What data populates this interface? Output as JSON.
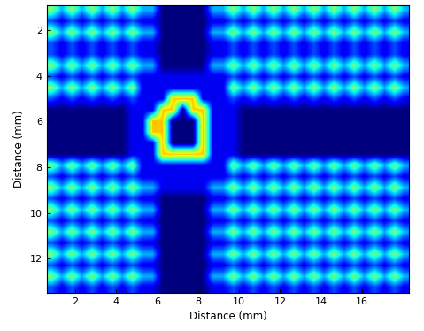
{
  "chart_data": {
    "type": "heatmap",
    "x_label": "Distance (mm)",
    "y_label": "Distance (mm)",
    "xlim": [
      0.6,
      18.3
    ],
    "ylim": [
      13.5,
      0.9
    ],
    "xticks": [
      2,
      4,
      6,
      8,
      10,
      12,
      14,
      16
    ],
    "yticks": [
      2,
      4,
      6,
      8,
      10,
      12
    ],
    "zlim": [
      0,
      10
    ],
    "cells": [
      [
        5,
        3,
        5,
        3,
        5,
        3,
        5,
        3,
        5,
        3,
        3,
        0,
        0,
        0,
        0,
        0,
        3,
        3,
        5,
        3,
        5,
        3,
        5,
        3,
        5,
        3,
        5,
        3,
        5,
        3,
        5,
        3,
        5,
        3,
        5,
        3
      ],
      [
        2,
        1,
        2,
        1,
        2,
        1,
        2,
        1,
        2,
        1,
        1,
        0,
        0,
        0,
        0,
        0,
        1,
        1,
        2,
        1,
        2,
        1,
        2,
        1,
        2,
        1,
        2,
        1,
        2,
        1,
        2,
        1,
        2,
        1,
        2,
        1
      ],
      [
        5,
        3,
        5,
        3,
        5,
        3,
        5,
        3,
        5,
        3,
        3,
        0,
        0,
        0,
        0,
        0,
        3,
        3,
        5,
        3,
        5,
        3,
        5,
        3,
        5,
        3,
        5,
        3,
        5,
        3,
        5,
        3,
        5,
        3,
        5,
        3
      ],
      [
        2,
        1,
        2,
        1,
        2,
        1,
        2,
        1,
        2,
        1,
        1,
        0,
        0,
        0,
        0,
        0,
        1,
        1,
        2,
        1,
        2,
        1,
        2,
        1,
        2,
        1,
        2,
        1,
        2,
        1,
        2,
        1,
        2,
        1,
        2,
        1
      ],
      [
        2,
        1,
        2,
        1,
        2,
        1,
        2,
        1,
        2,
        1,
        1,
        0,
        0,
        0,
        0,
        0,
        1,
        1,
        2,
        1,
        2,
        1,
        2,
        1,
        2,
        1,
        2,
        1,
        2,
        1,
        2,
        1,
        2,
        1,
        2,
        1
      ],
      [
        5,
        3,
        5,
        3,
        5,
        3,
        5,
        3,
        5,
        3,
        3,
        0,
        0,
        0,
        0,
        0,
        3,
        3,
        5,
        3,
        5,
        3,
        5,
        3,
        5,
        3,
        5,
        3,
        5,
        3,
        5,
        3,
        5,
        3,
        5,
        3
      ],
      [
        2,
        1,
        2,
        1,
        2,
        1,
        2,
        1,
        2,
        1,
        1,
        1,
        1,
        1,
        1,
        1,
        1,
        1,
        2,
        1,
        2,
        1,
        2,
        1,
        2,
        1,
        2,
        1,
        2,
        1,
        2,
        1,
        2,
        1,
        2,
        1
      ],
      [
        5,
        3,
        5,
        3,
        5,
        3,
        5,
        3,
        5,
        1,
        1,
        1,
        1,
        1,
        1,
        1,
        1,
        1,
        5,
        3,
        5,
        3,
        5,
        3,
        5,
        3,
        5,
        3,
        5,
        3,
        5,
        3,
        5,
        3,
        5,
        3
      ],
      [
        2,
        1,
        2,
        1,
        2,
        1,
        2,
        1,
        2,
        1,
        1,
        1,
        7,
        7,
        7,
        1,
        1,
        1,
        2,
        1,
        2,
        1,
        2,
        1,
        2,
        1,
        2,
        1,
        2,
        1,
        2,
        1,
        2,
        1,
        2,
        1
      ],
      [
        0,
        0,
        0,
        0,
        0,
        0,
        0,
        0,
        1,
        1,
        1,
        7,
        7,
        0,
        7,
        7,
        1,
        1,
        1,
        0,
        0,
        0,
        0,
        0,
        0,
        0,
        0,
        0,
        0,
        0,
        0,
        0,
        0,
        0,
        0,
        0
      ],
      [
        0,
        0,
        0,
        0,
        0,
        0,
        0,
        0,
        1,
        1,
        7,
        7,
        0,
        0,
        0,
        7,
        1,
        1,
        1,
        0,
        0,
        0,
        0,
        0,
        0,
        0,
        0,
        0,
        0,
        0,
        0,
        0,
        0,
        0,
        0,
        0
      ],
      [
        0,
        0,
        0,
        0,
        0,
        0,
        0,
        0,
        1,
        1,
        7,
        7,
        0,
        0,
        0,
        7,
        1,
        1,
        1,
        0,
        0,
        0,
        0,
        0,
        0,
        0,
        0,
        0,
        0,
        0,
        0,
        0,
        0,
        0,
        0,
        0
      ],
      [
        0,
        0,
        0,
        0,
        0,
        0,
        0,
        0,
        1,
        1,
        1,
        7,
        0,
        0,
        0,
        7,
        1,
        1,
        1,
        0,
        0,
        0,
        0,
        0,
        0,
        0,
        0,
        0,
        0,
        0,
        0,
        0,
        0,
        0,
        0,
        0
      ],
      [
        0,
        0,
        0,
        0,
        0,
        0,
        0,
        0,
        1,
        1,
        1,
        7,
        7,
        7,
        7,
        7,
        1,
        1,
        1,
        0,
        0,
        0,
        0,
        0,
        0,
        0,
        0,
        0,
        0,
        0,
        0,
        0,
        0,
        0,
        0,
        0
      ],
      [
        5,
        3,
        5,
        3,
        5,
        3,
        5,
        3,
        5,
        1,
        1,
        1,
        1,
        1,
        1,
        1,
        1,
        1,
        5,
        3,
        5,
        3,
        5,
        3,
        5,
        3,
        5,
        3,
        5,
        3,
        5,
        3,
        5,
        3,
        5,
        3
      ],
      [
        2,
        1,
        2,
        1,
        2,
        1,
        2,
        1,
        2,
        1,
        1,
        1,
        1,
        1,
        1,
        1,
        1,
        1,
        2,
        1,
        2,
        1,
        2,
        1,
        2,
        1,
        2,
        1,
        2,
        1,
        2,
        1,
        2,
        1,
        2,
        1
      ],
      [
        5,
        3,
        5,
        3,
        5,
        3,
        5,
        3,
        5,
        3,
        3,
        1,
        1,
        1,
        1,
        1,
        3,
        3,
        5,
        3,
        5,
        3,
        5,
        3,
        5,
        3,
        5,
        3,
        5,
        3,
        5,
        3,
        5,
        3,
        5,
        3
      ],
      [
        2,
        1,
        2,
        1,
        2,
        1,
        2,
        1,
        2,
        1,
        1,
        0,
        0,
        0,
        0,
        0,
        1,
        1,
        2,
        1,
        2,
        1,
        2,
        1,
        2,
        1,
        2,
        1,
        2,
        1,
        2,
        1,
        2,
        1,
        2,
        1
      ],
      [
        5,
        3,
        5,
        3,
        5,
        3,
        5,
        3,
        5,
        3,
        3,
        0,
        0,
        0,
        0,
        0,
        3,
        3,
        5,
        3,
        5,
        3,
        5,
        3,
        5,
        3,
        5,
        3,
        5,
        3,
        5,
        3,
        5,
        3,
        5,
        3
      ],
      [
        2,
        1,
        2,
        1,
        2,
        1,
        2,
        1,
        2,
        1,
        1,
        0,
        0,
        0,
        0,
        0,
        1,
        1,
        2,
        1,
        2,
        1,
        2,
        1,
        2,
        1,
        2,
        1,
        2,
        1,
        2,
        1,
        2,
        1,
        2,
        1
      ],
      [
        5,
        3,
        5,
        3,
        5,
        3,
        5,
        3,
        5,
        3,
        3,
        0,
        0,
        0,
        0,
        0,
        3,
        3,
        5,
        3,
        5,
        3,
        5,
        3,
        5,
        3,
        5,
        3,
        5,
        3,
        5,
        3,
        5,
        3,
        5,
        3
      ],
      [
        2,
        1,
        2,
        1,
        2,
        1,
        2,
        1,
        2,
        1,
        1,
        0,
        0,
        0,
        0,
        0,
        1,
        1,
        2,
        1,
        2,
        1,
        2,
        1,
        2,
        1,
        2,
        1,
        2,
        1,
        2,
        1,
        2,
        1,
        2,
        1
      ],
      [
        5,
        3,
        5,
        3,
        5,
        3,
        5,
        3,
        5,
        3,
        3,
        0,
        0,
        0,
        0,
        0,
        3,
        3,
        5,
        3,
        5,
        3,
        5,
        3,
        5,
        3,
        5,
        3,
        5,
        3,
        5,
        3,
        5,
        3,
        5,
        3
      ],
      [
        2,
        1,
        2,
        1,
        2,
        1,
        2,
        1,
        2,
        1,
        1,
        0,
        0,
        0,
        0,
        0,
        1,
        1,
        2,
        1,
        2,
        1,
        2,
        1,
        2,
        1,
        2,
        1,
        2,
        1,
        2,
        1,
        2,
        1,
        2,
        1
      ],
      [
        5,
        3,
        5,
        3,
        5,
        3,
        5,
        3,
        5,
        3,
        3,
        0,
        0,
        0,
        0,
        0,
        3,
        3,
        5,
        3,
        5,
        3,
        5,
        3,
        5,
        3,
        5,
        3,
        5,
        3,
        5,
        3,
        5,
        3,
        5,
        3
      ],
      [
        2,
        1,
        2,
        1,
        2,
        1,
        2,
        1,
        2,
        1,
        1,
        0,
        0,
        0,
        0,
        0,
        1,
        1,
        2,
        1,
        2,
        1,
        2,
        1,
        2,
        1,
        2,
        1,
        2,
        1,
        2,
        1,
        2,
        1,
        2,
        1
      ]
    ]
  }
}
